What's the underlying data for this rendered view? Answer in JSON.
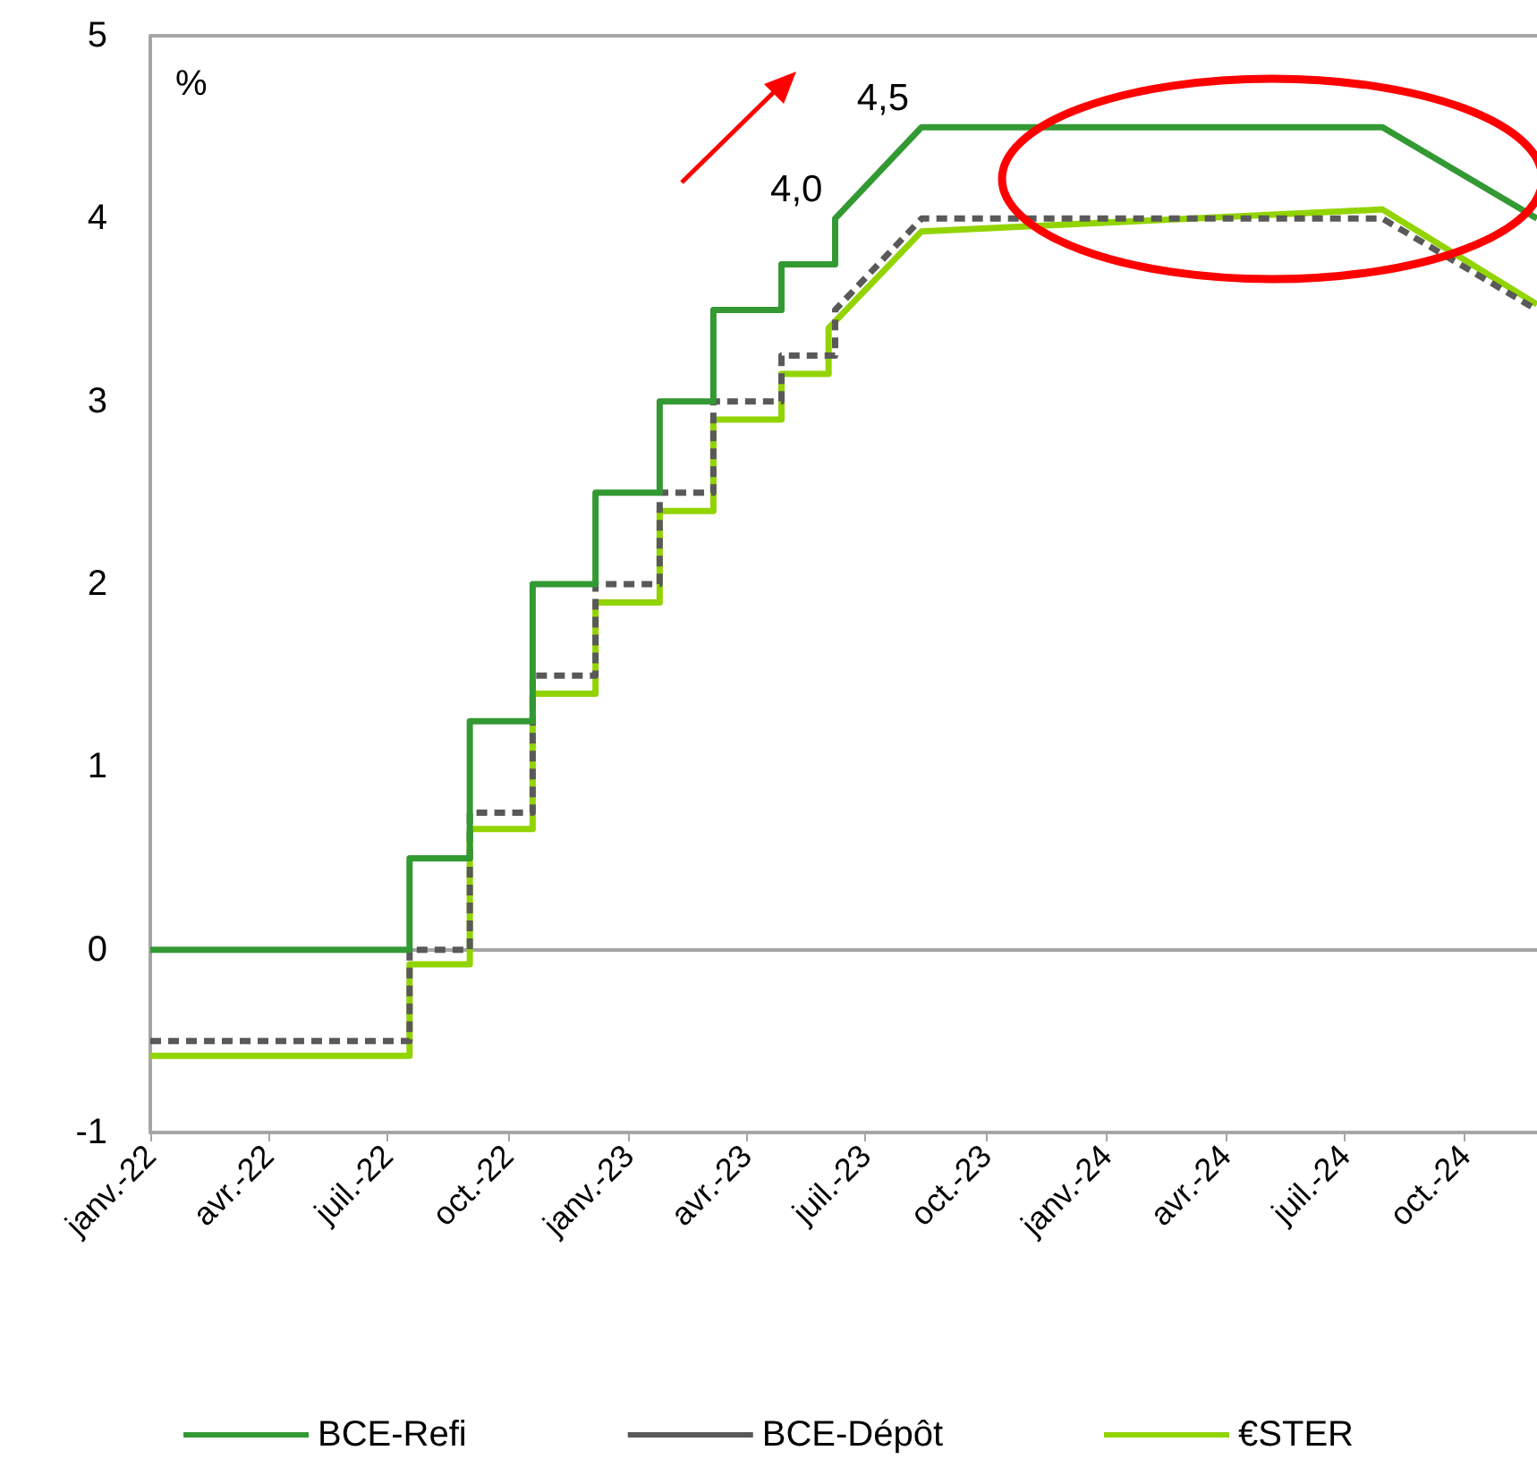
{
  "chart_data": {
    "type": "line",
    "ylabel": "%",
    "xlim": [
      "2022-01-01",
      "2024-11-25"
    ],
    "xticks": [
      {
        "value": "2022-01-01",
        "label": "janv.-22"
      },
      {
        "value": "2022-04-01",
        "label": "avr.-22"
      },
      {
        "value": "2022-07-01",
        "label": "juil.-22"
      },
      {
        "value": "2022-10-01",
        "label": "oct.-22"
      },
      {
        "value": "2023-01-01",
        "label": "janv.-23"
      },
      {
        "value": "2023-04-01",
        "label": "avr.-23"
      },
      {
        "value": "2023-07-01",
        "label": "juil.-23"
      },
      {
        "value": "2023-10-01",
        "label": "oct.-23"
      },
      {
        "value": "2024-01-01",
        "label": "janv.-24"
      },
      {
        "value": "2024-04-01",
        "label": "avr.-24"
      },
      {
        "value": "2024-07-01",
        "label": "juil.-24"
      },
      {
        "value": "2024-10-01",
        "label": "oct.-24"
      }
    ],
    "ylim": [
      -1,
      5
    ],
    "yticks": [
      -1,
      0,
      1,
      2,
      3,
      4,
      5
    ],
    "grid": false,
    "legend": "bottom",
    "marker": "none",
    "ref_lines": [
      {
        "axis": "y",
        "value": 0,
        "color": "#a6a6a6"
      }
    ],
    "annotations": [
      {
        "text": "4,0",
        "x": "2023-06-08",
        "y": 4.0
      },
      {
        "text": "4,5",
        "x": "2023-08-13",
        "y": 4.5
      }
    ],
    "series": [
      {
        "name": "BCE-Refi",
        "color": "#339933",
        "line_style": "solid",
        "x": [
          "2022-01-01",
          "2022-07-18",
          "2022-07-18",
          "2022-09-02",
          "2022-09-02",
          "2022-10-20",
          "2022-10-20",
          "2022-12-07",
          "2022-12-07",
          "2023-01-25",
          "2023-01-25",
          "2023-03-07",
          "2023-03-07",
          "2023-04-28",
          "2023-04-28",
          "2023-06-08",
          "2023-06-08",
          "2023-08-13",
          "2024-07-30",
          "2024-11-25"
        ],
        "values": [
          0,
          0,
          0.5,
          0.5,
          1.25,
          1.25,
          2,
          2,
          2.5,
          2.5,
          3,
          3,
          3.5,
          3.5,
          3.75,
          3.75,
          4,
          4.5,
          4.5,
          4
        ]
      },
      {
        "name": "BCE-Dépôt",
        "color": "#595959",
        "line_style": "dashed",
        "x": [
          "2022-01-01",
          "2022-07-18",
          "2022-07-18",
          "2022-09-02",
          "2022-09-02",
          "2022-10-20",
          "2022-10-20",
          "2022-12-07",
          "2022-12-07",
          "2023-01-25",
          "2023-01-25",
          "2023-03-07",
          "2023-03-07",
          "2023-04-28",
          "2023-04-28",
          "2023-06-08",
          "2023-06-08",
          "2023-08-13",
          "2024-07-30",
          "2024-11-25"
        ],
        "values": [
          -0.5,
          -0.5,
          0,
          0,
          0.75,
          0.75,
          1.5,
          1.5,
          2,
          2,
          2.5,
          2.5,
          3,
          3,
          3.25,
          3.25,
          3.5,
          4,
          4,
          3.5
        ]
      },
      {
        "name": "€STER",
        "color": "#92d400",
        "line_style": "solid",
        "x": [
          "2022-01-01",
          "2022-07-18",
          "2022-07-18",
          "2022-09-02",
          "2022-09-02",
          "2022-10-20",
          "2022-10-20",
          "2022-12-07",
          "2022-12-07",
          "2023-01-25",
          "2023-01-25",
          "2023-03-07",
          "2023-03-07",
          "2023-04-28",
          "2023-04-28",
          "2023-06-03",
          "2023-06-03",
          "2023-08-13",
          "2024-07-30",
          "2024-11-25"
        ],
        "values": [
          -0.58,
          -0.58,
          -0.08,
          -0.08,
          0.66,
          0.66,
          1.4,
          1.4,
          1.9,
          1.9,
          2.4,
          2.4,
          2.9,
          2.9,
          3.15,
          3.15,
          3.4,
          3.93,
          4.05,
          3.53
        ]
      }
    ]
  }
}
